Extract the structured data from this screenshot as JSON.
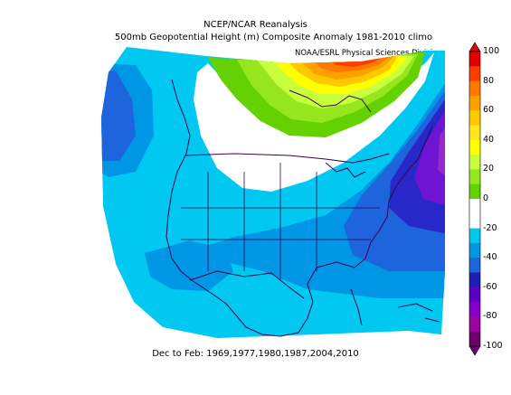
{
  "title_line1": "NCEP/NCAR Reanalysis",
  "title_line2": "500mb Geopotential Height (m) Composite Anomaly 1981-2010 climo",
  "credit": "NOAA/ESRL Physical Sciences Division",
  "footer": "Dec to Feb: 1969,1977,1980,1987,2004,2010",
  "colorbar": {
    "min": -100,
    "max": 100,
    "tick_labels": [
      "100",
      "80",
      "60",
      "40",
      "20",
      "0",
      "-20",
      "-40",
      "-60",
      "-80",
      "-100"
    ],
    "colors_top_to_bottom": [
      "#e00000",
      "#ff3c00",
      "#ff7800",
      "#ffa000",
      "#ffc800",
      "#ffe61e",
      "#ffff00",
      "#c8ff3c",
      "#96e61e",
      "#64d200",
      "#ffffff",
      "#ffffff",
      "#00c8f0",
      "#0096e6",
      "#1e64dc",
      "#1e1eb4",
      "#5a00c8",
      "#8200c8",
      "#a000a0",
      "#6e006e"
    ]
  },
  "colors": {
    "anom_minus_10_20": "#00c8f0",
    "anom_minus_20_30": "#0096e6",
    "anom_minus_30_40": "#1e64dc",
    "anom_minus_40_50": "#2828c8",
    "anom_minus_50_60": "#6e14d2",
    "anom_minus_60_70": "#9628c8",
    "anom_plus_10_20": "#64d200",
    "anom_plus_20_30": "#96e61e",
    "anom_plus_30_40": "#c8ff3c",
    "anom_plus_40_50": "#ffff00",
    "anom_plus_50_60": "#ffc800",
    "anom_plus_60_70": "#ffa000",
    "anom_plus_70_80": "#ff7800",
    "anom_plus_80_90": "#ff3c00",
    "coastline": "#3c0050"
  }
}
